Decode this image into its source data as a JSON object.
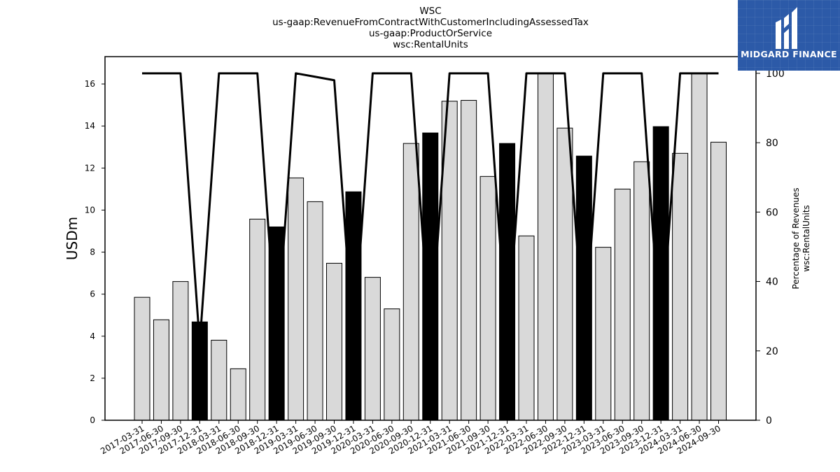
{
  "chart_data": {
    "type": "bar",
    "title_lines": [
      "WSC",
      "us-gaap:RevenueFromContractWithCustomerIncludingAssessedTax",
      "us-gaap:ProductOrService",
      "wsc:RentalUnits"
    ],
    "ylabel": "USDm",
    "ylabel_right": [
      "Percentage of Revenues",
      "wsc:RentalUnits"
    ],
    "categories": [
      "2017-03-31",
      "2017-06-30",
      "2017-09-30",
      "2017-12-31",
      "2018-03-31",
      "2018-06-30",
      "2018-09-30",
      "2018-12-31",
      "2019-03-31",
      "2019-06-30",
      "2019-09-30",
      "2019-12-31",
      "2020-03-31",
      "2020-06-30",
      "2020-09-30",
      "2020-12-31",
      "2021-03-31",
      "2021-06-30",
      "2021-09-30",
      "2021-12-31",
      "2022-03-31",
      "2022-06-30",
      "2022-09-30",
      "2022-12-31",
      "2023-03-31",
      "2023-06-30",
      "2023-09-30",
      "2023-12-31",
      "2024-03-31",
      "2024-06-30",
      "2024-09-30"
    ],
    "series": [
      {
        "type": "bar",
        "axis": "left",
        "values": [
          5.85,
          4.78,
          6.6,
          4.68,
          3.81,
          2.45,
          9.57,
          9.2,
          11.53,
          10.4,
          7.47,
          10.87,
          6.8,
          5.3,
          13.17,
          13.67,
          15.18,
          15.22,
          11.6,
          13.17,
          8.77,
          16.5,
          13.9,
          12.57,
          8.23,
          11.0,
          12.3,
          13.97,
          12.7,
          16.5,
          13.23
        ],
        "highlighted": [
          false,
          false,
          false,
          true,
          false,
          false,
          false,
          true,
          false,
          false,
          false,
          true,
          false,
          false,
          false,
          true,
          false,
          false,
          false,
          true,
          false,
          false,
          false,
          true,
          false,
          false,
          false,
          true,
          false,
          false,
          false
        ]
      },
      {
        "type": "line",
        "axis": "right",
        "values": [
          100,
          100,
          100,
          22,
          100,
          100,
          100,
          22,
          100,
          99,
          98,
          22,
          100,
          100,
          100,
          22,
          100,
          100,
          100,
          22,
          100,
          100,
          100,
          22,
          100,
          100,
          100,
          22,
          100,
          100,
          100
        ]
      }
    ],
    "ylim_left": [
      0,
      17.3
    ],
    "ylim_right": [
      0,
      104.8
    ],
    "yticks_left": [
      "0",
      "2",
      "4",
      "6",
      "8",
      "10",
      "12",
      "14",
      "16"
    ],
    "yticks_right": [
      "0",
      "20",
      "40",
      "60",
      "80",
      "100"
    ],
    "colors": {
      "bar_fill": "#d9d9d9",
      "bar_highlight": "#000000",
      "bar_edge": "#000000",
      "line": "#000000"
    },
    "grid": false
  },
  "logo": {
    "text": "MIDGARD FINANCE",
    "background": "#2c5aa8"
  }
}
